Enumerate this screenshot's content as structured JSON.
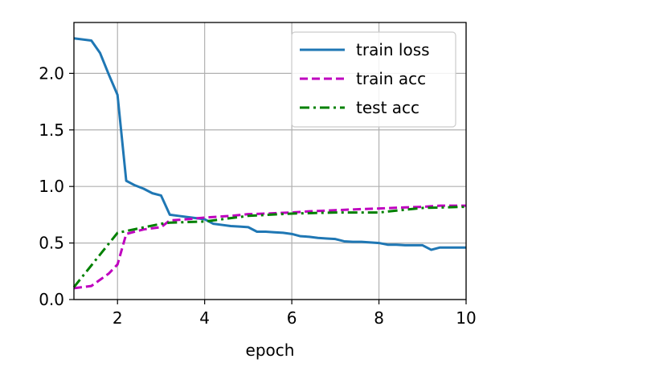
{
  "chart_data": {
    "type": "line",
    "xlabel": "epoch",
    "ylabel": "",
    "xlim": [
      1,
      10
    ],
    "ylim": [
      0,
      2.45
    ],
    "xticks": [
      2,
      4,
      6,
      8,
      10
    ],
    "yticks": [
      0.0,
      0.5,
      1.0,
      1.5,
      2.0
    ],
    "xtick_labels": [
      "2",
      "4",
      "6",
      "8",
      "10"
    ],
    "ytick_labels": [
      "0.0",
      "0.5",
      "1.0",
      "1.5",
      "2.0"
    ],
    "grid": true,
    "legend_position": "top-right",
    "series": [
      {
        "name": "train loss",
        "color": "#1f77b4",
        "style": "solid",
        "x": [
          1.0,
          1.2,
          1.4,
          1.6,
          1.8,
          2.0,
          2.2,
          2.4,
          2.6,
          2.8,
          3.0,
          3.2,
          3.4,
          3.6,
          3.8,
          4.0,
          4.2,
          4.4,
          4.6,
          4.8,
          5.0,
          5.2,
          5.4,
          5.6,
          5.8,
          6.0,
          6.2,
          6.4,
          6.6,
          6.8,
          7.0,
          7.2,
          7.4,
          7.6,
          7.8,
          8.0,
          8.2,
          8.4,
          8.6,
          8.8,
          9.0,
          9.2,
          9.4,
          9.6,
          9.8,
          10.0
        ],
        "y": [
          2.31,
          2.3,
          2.29,
          2.18,
          1.99,
          1.81,
          1.05,
          1.01,
          0.98,
          0.94,
          0.92,
          0.75,
          0.74,
          0.73,
          0.72,
          0.71,
          0.67,
          0.66,
          0.65,
          0.645,
          0.64,
          0.6,
          0.6,
          0.595,
          0.59,
          0.58,
          0.56,
          0.555,
          0.545,
          0.54,
          0.535,
          0.515,
          0.51,
          0.51,
          0.505,
          0.5,
          0.485,
          0.485,
          0.48,
          0.48,
          0.48,
          0.44,
          0.46,
          0.46,
          0.46,
          0.46
        ]
      },
      {
        "name": "train acc",
        "color": "#bf00bf",
        "style": "dashed",
        "x": [
          1.0,
          1.4,
          1.8,
          2.0,
          2.2,
          2.6,
          3.0,
          3.2,
          3.6,
          4.0,
          4.6,
          5.0,
          5.4,
          6.0,
          6.4,
          7.0,
          7.6,
          8.0,
          8.6,
          9.0,
          9.4,
          10.0
        ],
        "y": [
          0.1,
          0.12,
          0.23,
          0.31,
          0.58,
          0.62,
          0.64,
          0.7,
          0.71,
          0.725,
          0.74,
          0.755,
          0.76,
          0.77,
          0.78,
          0.79,
          0.8,
          0.805,
          0.815,
          0.82,
          0.83,
          0.83
        ]
      },
      {
        "name": "test acc",
        "color": "#008000",
        "style": "dashdot",
        "x": [
          1.0,
          2.0,
          3.0,
          3.2,
          4.0,
          5.0,
          6.0,
          7.0,
          8.0,
          9.0,
          10.0
        ],
        "y": [
          0.11,
          0.59,
          0.67,
          0.68,
          0.69,
          0.74,
          0.76,
          0.77,
          0.77,
          0.81,
          0.82
        ]
      }
    ]
  }
}
